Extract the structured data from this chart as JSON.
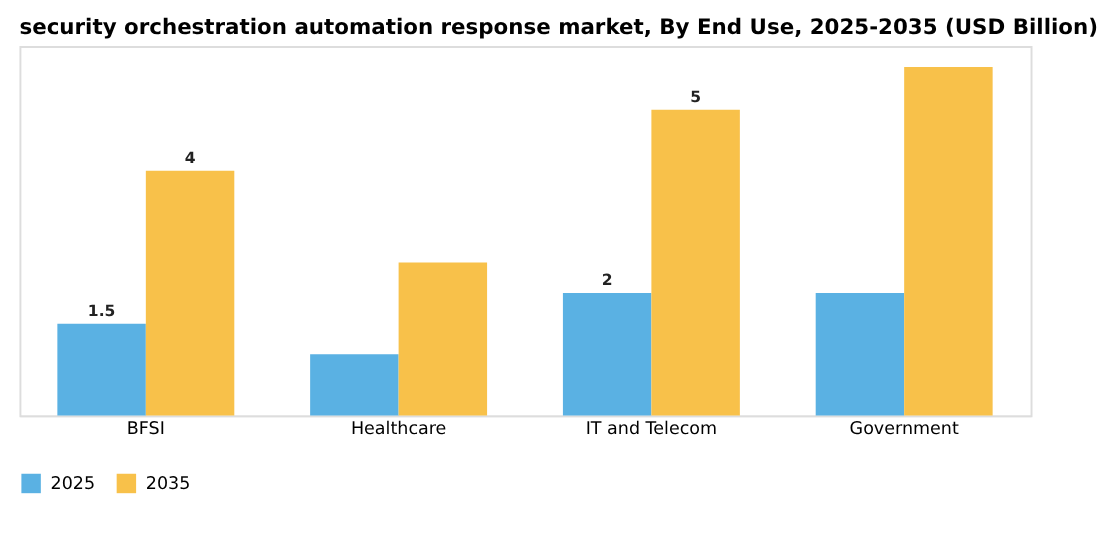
{
  "chart_data": {
    "type": "bar",
    "title": "security orchestration automation response market, By End Use, 2025-2035 (USD Billion)",
    "categories": [
      "BFSI",
      "Healthcare",
      "IT and Telecom",
      "Government"
    ],
    "series": [
      {
        "name": "2025",
        "color": "#5ab1e3",
        "values": [
          1.5,
          1.0,
          2.0,
          2.0
        ],
        "value_labels": [
          "1.5",
          null,
          "2",
          null
        ]
      },
      {
        "name": "2035",
        "color": "#f8c14a",
        "values": [
          4.0,
          2.5,
          5.0,
          5.7
        ],
        "value_labels": [
          "4",
          null,
          "5",
          null
        ]
      }
    ],
    "legend": "bottom",
    "grid": false
  }
}
